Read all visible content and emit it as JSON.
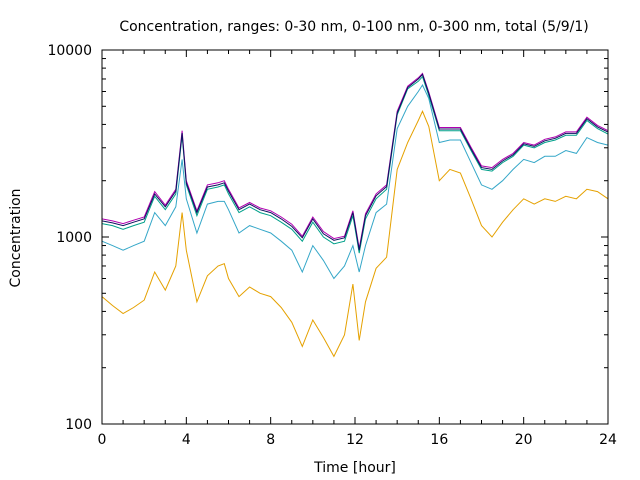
{
  "chart_data": {
    "type": "line",
    "title": "Concentration, ranges: 0-30 nm, 0-100 nm, 0-300 nm, total (5/9/1)",
    "xlabel": "Time [hour]",
    "ylabel": "Concentration",
    "xlim": [
      0,
      24
    ],
    "ylim": [
      100,
      10000
    ],
    "yscale": "log",
    "xticks": [
      "0",
      "4",
      "8",
      "12",
      "16",
      "20",
      "24"
    ],
    "yticks": [
      "100",
      "1000",
      "10000"
    ],
    "grid": false,
    "legend": "none",
    "series": [
      {
        "color": "#e5a100",
        "x": [
          0,
          0.5,
          1,
          1.5,
          2,
          2.5,
          3,
          3.5,
          3.8,
          4,
          4.5,
          5,
          5.5,
          5.8,
          6,
          6.5,
          7,
          7.5,
          8,
          8.5,
          9,
          9.5,
          10,
          10.5,
          11,
          11.5,
          11.9,
          12.2,
          12.5,
          13,
          13.5,
          14,
          14.5,
          15,
          15.2,
          15.5,
          16,
          16.5,
          17,
          17.5,
          18,
          18.5,
          19,
          19.5,
          20,
          20.5,
          21,
          21.5,
          22,
          22.5,
          23,
          23.5,
          24
        ],
        "values": [
          480,
          430,
          390,
          420,
          460,
          650,
          520,
          700,
          1350,
          850,
          450,
          620,
          700,
          720,
          600,
          480,
          540,
          500,
          480,
          420,
          350,
          260,
          360,
          290,
          230,
          300,
          560,
          280,
          450,
          680,
          780,
          2300,
          3200,
          4200,
          4700,
          3900,
          2000,
          2300,
          2200,
          1600,
          1150,
          1000,
          1200,
          1400,
          1600,
          1500,
          1600,
          1550,
          1650,
          1600,
          1800,
          1750,
          1600
        ]
      },
      {
        "color": "#35a7c8",
        "x": [
          0,
          0.5,
          1,
          1.5,
          2,
          2.5,
          3,
          3.5,
          3.8,
          4,
          4.5,
          5,
          5.5,
          5.8,
          6,
          6.5,
          7,
          7.5,
          8,
          8.5,
          9,
          9.5,
          10,
          10.5,
          11,
          11.5,
          11.9,
          12.2,
          12.5,
          13,
          13.5,
          14,
          14.5,
          15,
          15.2,
          15.5,
          16,
          16.5,
          17,
          17.5,
          18,
          18.5,
          19,
          19.5,
          20,
          20.5,
          21,
          21.5,
          22,
          22.5,
          23,
          23.5,
          24
        ],
        "values": [
          950,
          900,
          850,
          900,
          950,
          1350,
          1150,
          1450,
          2600,
          1600,
          1050,
          1500,
          1550,
          1550,
          1400,
          1050,
          1150,
          1100,
          1050,
          950,
          850,
          650,
          900,
          750,
          600,
          700,
          900,
          650,
          900,
          1350,
          1500,
          3800,
          5000,
          6000,
          6500,
          5500,
          3200,
          3300,
          3300,
          2500,
          1900,
          1800,
          2000,
          2300,
          2600,
          2500,
          2700,
          2700,
          2900,
          2800,
          3400,
          3200,
          3100
        ]
      },
      {
        "color": "#00a08a",
        "x": [
          0,
          0.5,
          1,
          1.5,
          2,
          2.5,
          3,
          3.5,
          3.8,
          4,
          4.5,
          5,
          5.5,
          5.8,
          6,
          6.5,
          7,
          7.5,
          8,
          8.5,
          9,
          9.5,
          10,
          10.5,
          11,
          11.5,
          11.9,
          12.2,
          12.5,
          13,
          13.5,
          14,
          14.5,
          15,
          15.2,
          15.5,
          16,
          16.5,
          17,
          17.5,
          18,
          18.5,
          19,
          19.5,
          20,
          20.5,
          21,
          21.5,
          22,
          22.5,
          23,
          23.5,
          24
        ],
        "values": [
          1180,
          1150,
          1100,
          1150,
          1200,
          1650,
          1400,
          1700,
          3500,
          1900,
          1300,
          1800,
          1850,
          1900,
          1700,
          1350,
          1450,
          1350,
          1300,
          1200,
          1100,
          950,
          1200,
          1000,
          920,
          950,
          1300,
          820,
          1250,
          1600,
          1800,
          4500,
          6200,
          6800,
          7200,
          5700,
          3700,
          3700,
          3700,
          2900,
          2300,
          2250,
          2500,
          2700,
          3100,
          3000,
          3200,
          3300,
          3500,
          3500,
          4200,
          3800,
          3550
        ]
      },
      {
        "color": "#b000b0",
        "x": [
          0,
          0.5,
          1,
          1.5,
          2,
          2.5,
          3,
          3.5,
          3.8,
          4,
          4.5,
          5,
          5.5,
          5.8,
          6,
          6.5,
          7,
          7.5,
          8,
          8.5,
          9,
          9.5,
          10,
          10.5,
          11,
          11.5,
          11.9,
          12.2,
          12.5,
          13,
          13.5,
          14,
          14.5,
          15,
          15.2,
          15.5,
          16,
          16.5,
          17,
          17.5,
          18,
          18.5,
          19,
          19.5,
          20,
          20.5,
          21,
          21.5,
          22,
          22.5,
          23,
          23.5,
          24
        ],
        "values": [
          1250,
          1220,
          1180,
          1230,
          1280,
          1750,
          1480,
          1800,
          3700,
          2000,
          1380,
          1900,
          1950,
          2000,
          1800,
          1430,
          1530,
          1430,
          1380,
          1280,
          1170,
          1010,
          1280,
          1070,
          980,
          1010,
          1380,
          870,
          1330,
          1700,
          1900,
          4700,
          6400,
          7100,
          7500,
          5950,
          3850,
          3850,
          3850,
          3020,
          2400,
          2350,
          2600,
          2800,
          3200,
          3100,
          3330,
          3430,
          3650,
          3650,
          4370,
          3950,
          3700
        ]
      },
      {
        "color": "#101060",
        "x": [
          0,
          0.5,
          1,
          1.5,
          2,
          2.5,
          3,
          3.5,
          3.8,
          4,
          4.5,
          5,
          5.5,
          5.8,
          6,
          6.5,
          7,
          7.5,
          8,
          8.5,
          9,
          9.5,
          10,
          10.5,
          11,
          11.5,
          11.9,
          12.2,
          12.5,
          13,
          13.5,
          14,
          14.5,
          15,
          15.2,
          15.5,
          16,
          16.5,
          17,
          17.5,
          18,
          18.5,
          19,
          19.5,
          20,
          20.5,
          21,
          21.5,
          22,
          22.5,
          23,
          23.5,
          24
        ],
        "values": [
          1220,
          1190,
          1150,
          1200,
          1250,
          1700,
          1450,
          1760,
          3600,
          1950,
          1350,
          1850,
          1900,
          1950,
          1760,
          1400,
          1500,
          1400,
          1350,
          1250,
          1140,
          990,
          1250,
          1040,
          960,
          990,
          1350,
          850,
          1300,
          1660,
          1860,
          4600,
          6300,
          7000,
          7400,
          5850,
          3780,
          3780,
          3780,
          2960,
          2350,
          2300,
          2550,
          2750,
          3150,
          3050,
          3270,
          3370,
          3580,
          3580,
          4290,
          3880,
          3640
        ]
      }
    ]
  }
}
